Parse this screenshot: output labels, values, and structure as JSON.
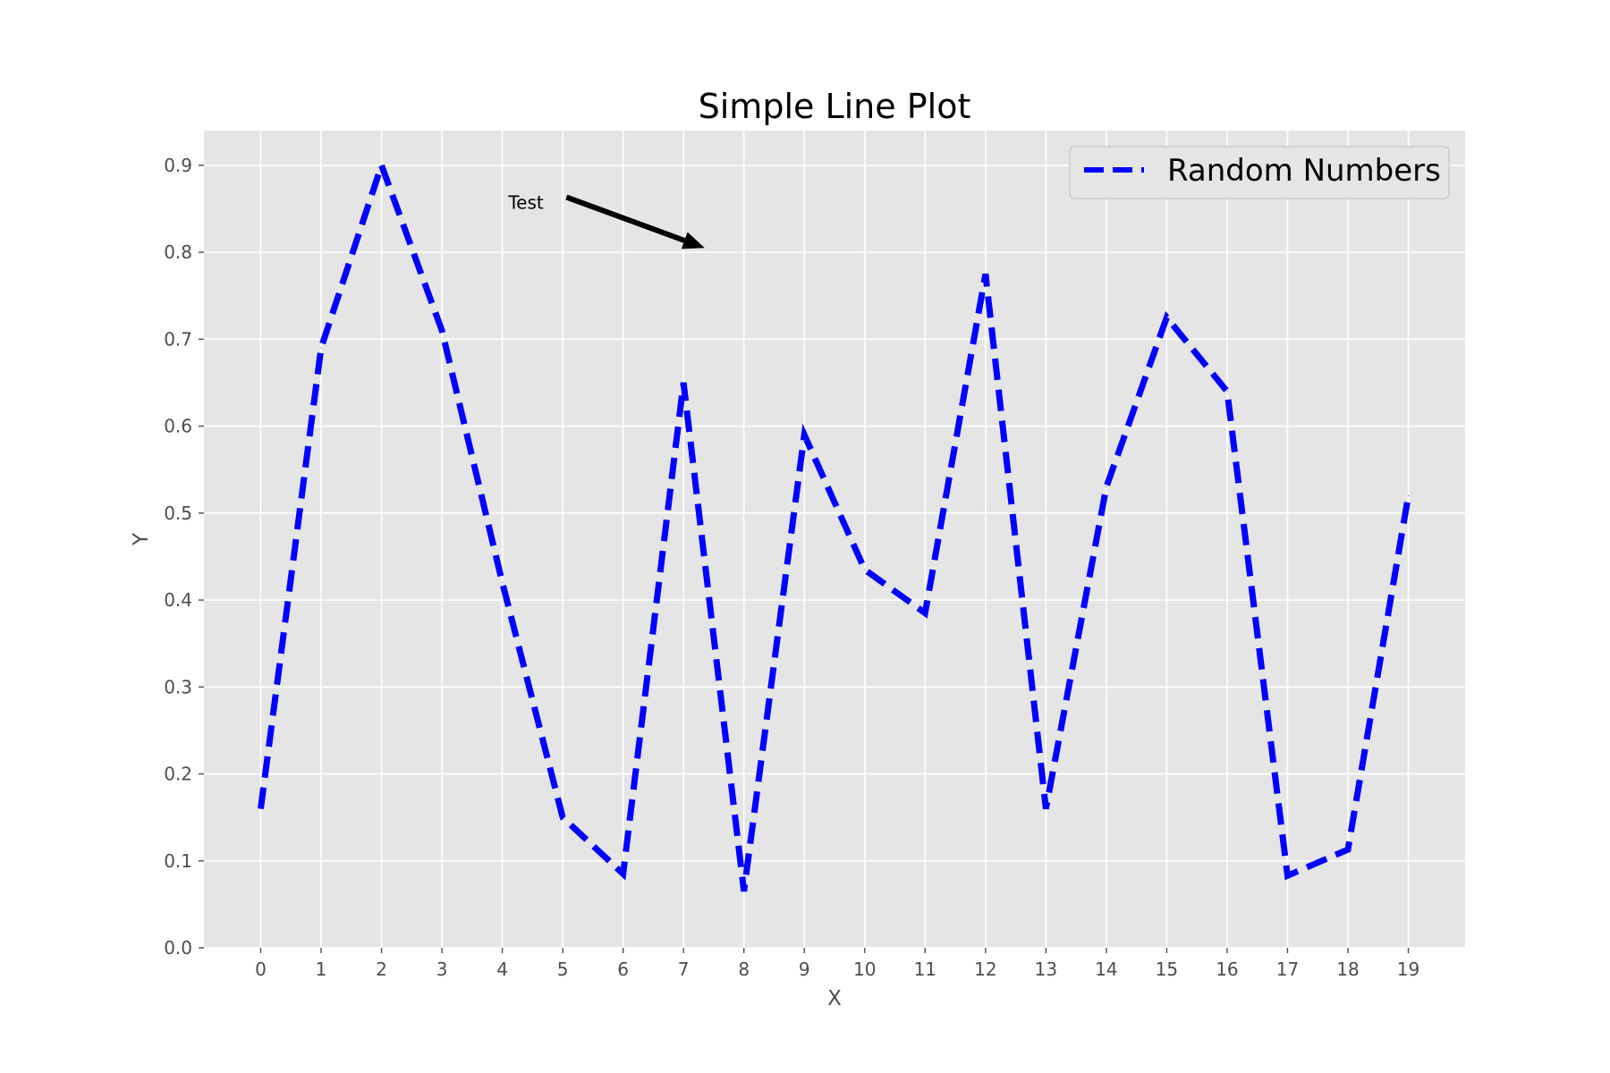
{
  "chart_data": {
    "type": "line",
    "title": "Simple Line Plot",
    "xlabel": "X",
    "ylabel": "Y",
    "x": [
      0,
      1,
      2,
      3,
      4,
      5,
      6,
      7,
      8,
      9,
      10,
      11,
      12,
      13,
      14,
      15,
      16,
      17,
      18,
      19
    ],
    "series": [
      {
        "name": "Random Numbers",
        "values": [
          0.16,
          0.69,
          0.9,
          0.71,
          0.42,
          0.15,
          0.085,
          0.65,
          0.065,
          0.59,
          0.435,
          0.385,
          0.775,
          0.16,
          0.53,
          0.725,
          0.64,
          0.083,
          0.113,
          0.52
        ],
        "color": "#0000ff",
        "style": "dashed"
      }
    ],
    "xticks": [
      "0",
      "1",
      "2",
      "3",
      "4",
      "5",
      "6",
      "7",
      "8",
      "9",
      "10",
      "11",
      "12",
      "13",
      "14",
      "15",
      "16",
      "17",
      "18",
      "19"
    ],
    "yticks": [
      "0.0",
      "0.1",
      "0.2",
      "0.3",
      "0.4",
      "0.5",
      "0.6",
      "0.7",
      "0.8",
      "0.9"
    ],
    "ylim": [
      0,
      0.94
    ],
    "xlim": [
      -0.94,
      19.94
    ],
    "grid": true,
    "legend_position": "top-right",
    "annotation": {
      "text": "Test",
      "text_x": 4.1,
      "text_y": 0.85,
      "arrow_x": 7.35,
      "arrow_y": 0.805
    },
    "colors": {
      "background": "#e5e5e5",
      "grid": "#ffffff",
      "line": "#0000ff",
      "arrow": "#000000"
    }
  }
}
